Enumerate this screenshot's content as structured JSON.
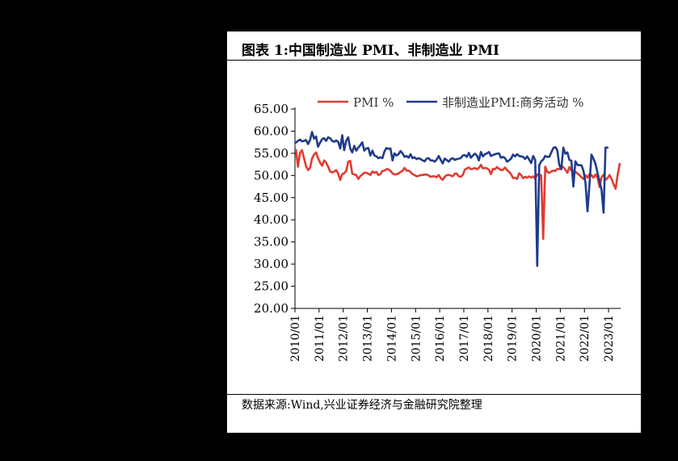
{
  "title": "图表 1:中国制造业 PMI、非制造业 PMI",
  "source": "数据来源:Wind,兴业证券经济与金融研究院整理",
  "chart_data": {
    "type": "line",
    "title": "图表 1:中国制造业 PMI、非制造业 PMI",
    "ylim": [
      20,
      65
    ],
    "yticks": [
      "65.00",
      "60.00",
      "55.00",
      "50.00",
      "45.00",
      "40.00",
      "35.00",
      "30.00",
      "25.00",
      "20.00"
    ],
    "xticks": [
      "2010/01",
      "2011/01",
      "2012/01",
      "2013/01",
      "2014/01",
      "2015/01",
      "2016/01",
      "2017/01",
      "2018/01",
      "2019/01",
      "2020/01",
      "2021/01",
      "2022/01",
      "2023/01"
    ],
    "legend_position": "top",
    "x_start": "2010-01",
    "x_end": "2023-02",
    "series": [
      {
        "name": "PMI %",
        "color": "#e03c31",
        "values": [
          55.8,
          52.0,
          55.1,
          55.7,
          53.9,
          52.1,
          51.2,
          51.7,
          53.8,
          54.7,
          55.2,
          53.9,
          52.9,
          52.2,
          53.4,
          52.9,
          52.0,
          50.9,
          50.7,
          50.9,
          51.2,
          50.4,
          49.0,
          50.3,
          50.5,
          51.0,
          53.1,
          53.3,
          50.4,
          50.2,
          50.1,
          49.2,
          49.8,
          50.2,
          50.6,
          50.6,
          50.4,
          50.1,
          50.9,
          50.6,
          50.8,
          50.1,
          50.3,
          51.0,
          51.1,
          51.4,
          51.4,
          51.0,
          50.5,
          50.2,
          50.3,
          50.4,
          50.8,
          51.0,
          51.7,
          51.1,
          51.1,
          50.8,
          50.3,
          50.1,
          49.8,
          49.9,
          50.1,
          50.1,
          50.2,
          50.2,
          50.0,
          49.7,
          49.8,
          49.8,
          49.6,
          50.1,
          49.4,
          49.0,
          49.7,
          50.1,
          50.1,
          50.0,
          49.8,
          50.4,
          50.4,
          49.8,
          49.7,
          50.1,
          51.3,
          51.6,
          51.8,
          51.4,
          51.5,
          51.7,
          51.4,
          51.7,
          52.4,
          51.6,
          51.7,
          51.6,
          51.3,
          50.3,
          51.5,
          51.4,
          51.9,
          51.5,
          51.2,
          51.3,
          51.8,
          51.2,
          50.8,
          50.3,
          49.4,
          49.5,
          49.2,
          50.5,
          50.1,
          49.4,
          49.7,
          49.5,
          49.8,
          49.5,
          49.8,
          49.3,
          50.2,
          50.2,
          50.0,
          35.7,
          52.0,
          50.8,
          50.6,
          50.9,
          51.1,
          51.0,
          51.5,
          51.4,
          52.1,
          51.9,
          51.3,
          50.6,
          51.9,
          51.1,
          51.0,
          50.9,
          50.4,
          50.1,
          49.6,
          49.2,
          50.1,
          49.5,
          50.3,
          50.1,
          49.5,
          50.2,
          49.5,
          47.4,
          49.6,
          50.2,
          49.0,
          49.4,
          50.1,
          49.2,
          48.0,
          47.0,
          50.1,
          52.6
        ]
      },
      {
        "name": "非制造业PMI:商务活动 %",
        "color": "#1f3b8c",
        "values": [
          57.4,
          57.8,
          58.1,
          57.7,
          57.8,
          58.0,
          57.1,
          58.0,
          59.8,
          58.3,
          58.8,
          56.5,
          57.4,
          58.2,
          58.4,
          57.8,
          58.6,
          58.4,
          57.8,
          57.6,
          57.9,
          57.6,
          56.1,
          59.1,
          55.7,
          57.8,
          58.6,
          56.1,
          55.2,
          56.7,
          55.6,
          56.3,
          56.8,
          57.5,
          55.6,
          56.1,
          56.2,
          54.5,
          55.6,
          54.5,
          54.3,
          53.9,
          54.1,
          53.9,
          55.4,
          56.2,
          56.0,
          56.1,
          53.4,
          55.0,
          54.5,
          54.8,
          55.5,
          55.0,
          54.2,
          54.4,
          54.0,
          54.8,
          53.9,
          54.1,
          53.7,
          53.9,
          53.7,
          53.4,
          53.2,
          53.8,
          53.9,
          53.4,
          53.4,
          53.1,
          53.6,
          54.4,
          53.5,
          52.7,
          53.8,
          53.5,
          53.1,
          53.7,
          53.9,
          53.5,
          53.7,
          53.8,
          53.9,
          54.5,
          54.6,
          54.2,
          55.1,
          54.0,
          54.5,
          54.9,
          54.5,
          53.4,
          55.3,
          54.3,
          54.8,
          55.0,
          55.3,
          54.4,
          54.6,
          54.8,
          54.9,
          55.0,
          54.0,
          54.2,
          53.9,
          53.1,
          53.4,
          53.8,
          54.7,
          54.3,
          54.8,
          54.4,
          54.3,
          54.2,
          53.7,
          54.3,
          53.6,
          52.8,
          54.4,
          53.5,
          29.6,
          52.3,
          53.2,
          53.6,
          54.4,
          54.2,
          54.2,
          55.2,
          56.2,
          56.4,
          55.7,
          52.4,
          51.4,
          56.3,
          54.9,
          55.2,
          53.5,
          53.3,
          47.5,
          53.2,
          52.4,
          52.3,
          52.3,
          51.1,
          48.4,
          41.9,
          47.8,
          54.7,
          53.8,
          52.6,
          50.6,
          48.7,
          46.7,
          41.6,
          56.3,
          56.3
        ]
      }
    ]
  }
}
